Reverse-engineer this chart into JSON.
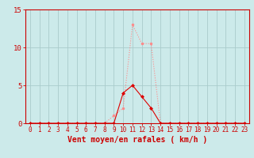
{
  "bg_color": "#cceaea",
  "grid_color": "#aacccc",
  "line1_color": "#ff8888",
  "line2_color": "#dd0000",
  "x_all": [
    0,
    1,
    2,
    3,
    4,
    5,
    6,
    7,
    8,
    9,
    10,
    11,
    12,
    13,
    14,
    15,
    16,
    17,
    18,
    19,
    20,
    21,
    22,
    23
  ],
  "y_rafales": [
    0,
    0,
    0,
    0,
    0,
    0,
    0,
    0,
    0,
    1,
    2,
    13,
    10.5,
    10.5,
    0,
    0,
    0,
    0,
    0,
    0,
    0,
    0,
    0,
    0
  ],
  "y_moyen": [
    0,
    0,
    0,
    0,
    0,
    0,
    0,
    0,
    0,
    0,
    4,
    5,
    3.5,
    2,
    0,
    0,
    0,
    0,
    0,
    0,
    0,
    0,
    0,
    0
  ],
  "xlabel": "Vent moyen/en rafales ( km/h )",
  "ylim": [
    0,
    15
  ],
  "xlim": [
    -0.5,
    23.5
  ],
  "yticks": [
    0,
    5,
    10,
    15
  ],
  "xticks": [
    0,
    1,
    2,
    3,
    4,
    5,
    6,
    7,
    8,
    9,
    10,
    11,
    12,
    13,
    14,
    15,
    16,
    17,
    18,
    19,
    20,
    21,
    22,
    23
  ],
  "tick_fontsize": 6,
  "xlabel_fontsize": 7,
  "ylabel_left_pad": 2
}
